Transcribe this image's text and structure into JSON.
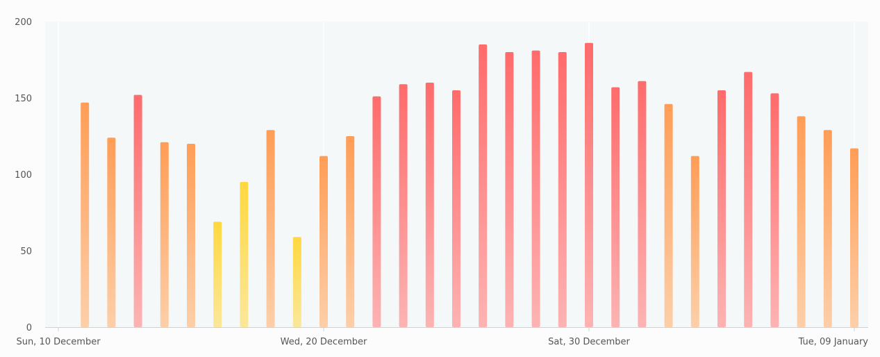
{
  "chart_data": {
    "type": "bar",
    "title": "",
    "xlabel": "",
    "ylabel": "",
    "ylim": [
      0,
      200
    ],
    "yticks": [
      0,
      50,
      100,
      150,
      200
    ],
    "x_tick_labels": [
      "Sun, 10 December",
      "Wed, 20 December",
      "Sat, 30 December",
      "Tue, 09 January"
    ],
    "x_tick_dates": [
      "2023-12-10",
      "2023-12-20",
      "2023-12-30",
      "2024-01-09"
    ],
    "grid": "vertical lines at labeled dates",
    "legend": "none",
    "series": [
      {
        "x": [
          "2023-12-11",
          "2023-12-12",
          "2023-12-13",
          "2023-12-14",
          "2023-12-15",
          "2023-12-16",
          "2023-12-17",
          "2023-12-18",
          "2023-12-19",
          "2023-12-20",
          "2023-12-21",
          "2023-12-22",
          "2023-12-23",
          "2023-12-24",
          "2023-12-25",
          "2023-12-26",
          "2023-12-27",
          "2023-12-28",
          "2023-12-29",
          "2023-12-30",
          "2023-12-31",
          "2024-01-01",
          "2024-01-02",
          "2024-01-03",
          "2024-01-04",
          "2024-01-05",
          "2024-01-06",
          "2024-01-07",
          "2024-01-08",
          "2024-01-09"
        ],
        "values": [
          147,
          124,
          152,
          121,
          120,
          69,
          95,
          129,
          59,
          112,
          125,
          151,
          159,
          160,
          155,
          185,
          180,
          181,
          180,
          186,
          157,
          161,
          146,
          112,
          155,
          167,
          153,
          138,
          129,
          117
        ]
      }
    ],
    "colors": {
      "red_top": "#ff6b6b",
      "red_bottom": "#fdb3b3",
      "orange_top": "#ff9d56",
      "orange_bottom": "#fdcfa8",
      "yellow_top": "#ffd840",
      "yellow_bottom": "#fbe79a",
      "plot_bg": "#f5f8f9",
      "axis": "#c9d2e0",
      "grid": "#ffffff"
    }
  }
}
